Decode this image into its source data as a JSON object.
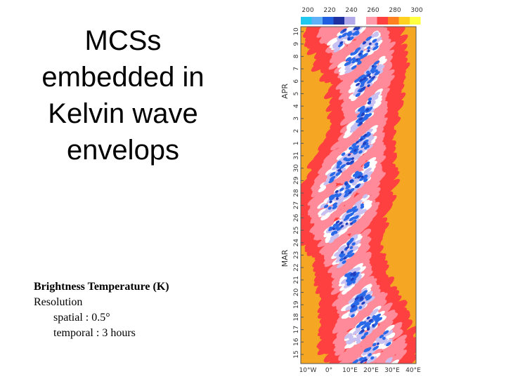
{
  "slide": {
    "title_lines": [
      "MCSs",
      "embedded in",
      "Kelvin wave",
      "envelops"
    ],
    "caption": {
      "heading": "Brightness Temperature (K)",
      "lines": [
        "Resolution",
        "spatial : 0.5°",
        "temporal : 3 hours"
      ]
    }
  },
  "figure": {
    "colorbar_ticks": [
      200,
      220,
      240,
      260,
      280,
      300
    ],
    "y_labels": [
      "15",
      "16",
      "17",
      "18",
      "19",
      "20",
      "21",
      "22",
      "23",
      "24",
      "25",
      "26",
      "27",
      "28",
      "29",
      "30",
      "31",
      "1",
      "2",
      "3",
      "4",
      "5",
      "6",
      "7",
      "8",
      "9",
      "10"
    ],
    "month_labels": [
      "MAR",
      "APR"
    ],
    "x_labels": [
      "10°W",
      "0°",
      "10°E",
      "20°E",
      "30°E",
      "40°E"
    ]
  }
}
